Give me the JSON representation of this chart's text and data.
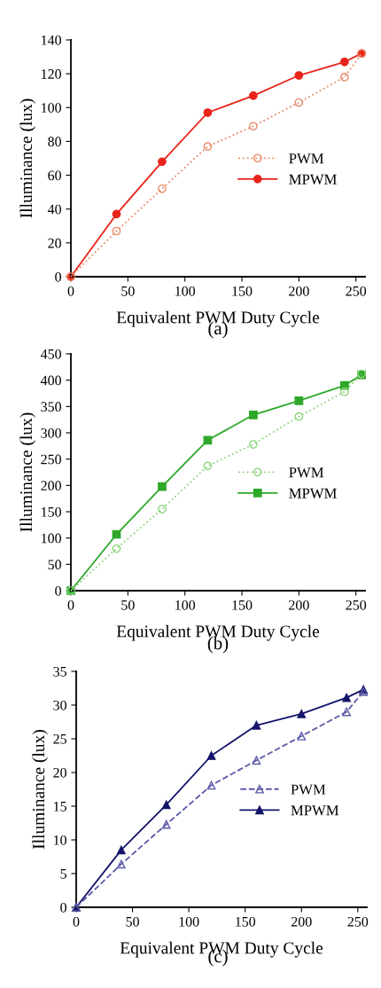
{
  "chart_data": [
    {
      "type": "line",
      "xlabel": "Equivalent PWM Duty Cycle",
      "ylabel": "Illuminance (lux)",
      "annotations": [
        "(a)"
      ],
      "x": [
        0,
        40,
        80,
        120,
        160,
        200,
        240,
        255
      ],
      "xlim": [
        0,
        258
      ],
      "xticks": [
        0,
        50,
        100,
        150,
        200,
        250
      ],
      "ylim": [
        0,
        140
      ],
      "yticks": [
        0,
        20,
        40,
        60,
        80,
        100,
        120,
        140
      ],
      "legend": "right",
      "grid": false,
      "series": [
        {
          "name": "PWM",
          "color": "#e88a6a",
          "marker": "circle",
          "line_style": "dotted",
          "values": [
            0,
            27,
            52,
            77,
            89,
            103,
            118,
            132
          ]
        },
        {
          "name": "MPWM",
          "color": "#e8241a",
          "marker": "circle",
          "line_style": "solid",
          "values": [
            0,
            37,
            68,
            97,
            107,
            119,
            127,
            132
          ]
        }
      ]
    },
    {
      "type": "line",
      "xlabel": "Equivalent PWM Duty Cycle",
      "ylabel": "Illuminance (lux)",
      "annotations": [
        "(b)"
      ],
      "x": [
        0,
        40,
        80,
        120,
        160,
        200,
        240,
        255
      ],
      "xlim": [
        0,
        258
      ],
      "xticks": [
        0,
        50,
        100,
        150,
        200,
        250
      ],
      "ylim": [
        0,
        450
      ],
      "yticks": [
        0,
        50,
        100,
        150,
        200,
        250,
        300,
        350,
        400,
        450
      ],
      "legend": "right",
      "grid": false,
      "series": [
        {
          "name": "PWM",
          "color": "#8fd47f",
          "marker": "circle",
          "line_style": "dotted",
          "values": [
            0,
            80,
            155,
            237,
            278,
            331,
            378,
            412
          ]
        },
        {
          "name": "MPWM",
          "color": "#2ea82a",
          "marker": "square",
          "line_style": "solid",
          "values": [
            0,
            107,
            198,
            286,
            334,
            361,
            390,
            410
          ]
        }
      ]
    },
    {
      "type": "line",
      "xlabel": "Equivalent PWM Duty Cycle",
      "ylabel": "Illuminance (lux)",
      "annotations": [
        "(c)"
      ],
      "x": [
        0,
        40,
        80,
        120,
        160,
        200,
        240,
        255
      ],
      "xlim": [
        0,
        258
      ],
      "xticks": [
        0,
        50,
        100,
        150,
        200,
        250
      ],
      "ylim": [
        0,
        35
      ],
      "yticks": [
        0,
        5,
        10,
        15,
        20,
        25,
        30,
        35
      ],
      "legend": "right",
      "grid": false,
      "series": [
        {
          "name": "PWM",
          "color": "#5a5aa8",
          "marker": "triangle",
          "line_style": "dashed",
          "values": [
            0,
            6.4,
            12.3,
            18.1,
            21.8,
            25.4,
            29,
            32
          ]
        },
        {
          "name": "MPWM",
          "color": "#14146a",
          "marker": "triangle",
          "line_style": "solid",
          "values": [
            0,
            8.5,
            15.2,
            22.5,
            27,
            28.7,
            31.1,
            32.3
          ]
        }
      ]
    }
  ]
}
